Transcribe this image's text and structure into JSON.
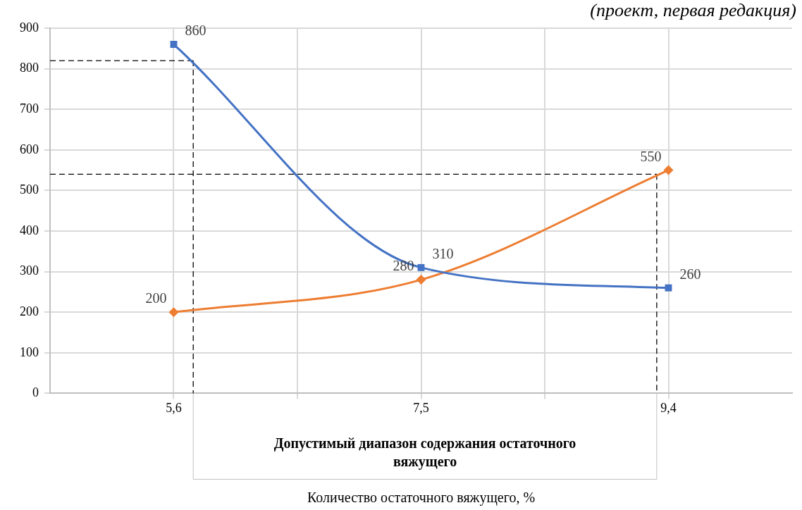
{
  "chart_data": {
    "type": "line",
    "annotations": [
      "(проект, первая редакция)",
      "Допустимый диапазон содержания остаточного вяжущего",
      "Количество остаточного вяжущего, %"
    ],
    "x": [
      5.6,
      7.5,
      9.4
    ],
    "xlim": [
      4.65,
      10.35
    ],
    "xticks": [
      {
        "value": 5.6,
        "label": "5,6"
      },
      {
        "value": 6.55,
        "label": null
      },
      {
        "value": 7.5,
        "label": "7,5"
      },
      {
        "value": 8.45,
        "label": null
      },
      {
        "value": 9.4,
        "label": "9,4"
      }
    ],
    "ylim": [
      0,
      900
    ],
    "yticks": [
      0,
      100,
      200,
      300,
      400,
      500,
      600,
      700,
      800,
      900
    ],
    "series": [
      {
        "color": "#4472c4",
        "marker": "square",
        "values": [
          860,
          310,
          260
        ]
      },
      {
        "color": "#ed7d31",
        "marker": "diamond",
        "values": [
          200,
          280,
          550
        ]
      }
    ],
    "ref_lines": [
      {
        "axis": "y",
        "value": 820,
        "line_style": "dashed"
      },
      {
        "axis": "y",
        "value": 540,
        "line_style": "dashed"
      },
      {
        "axis": "x",
        "value": 5.75,
        "line_style": "dashed"
      },
      {
        "axis": "x",
        "value": 9.31,
        "line_style": "dashed"
      }
    ],
    "data_labels": true,
    "grid": true,
    "legend": false,
    "line_style": "solid"
  }
}
